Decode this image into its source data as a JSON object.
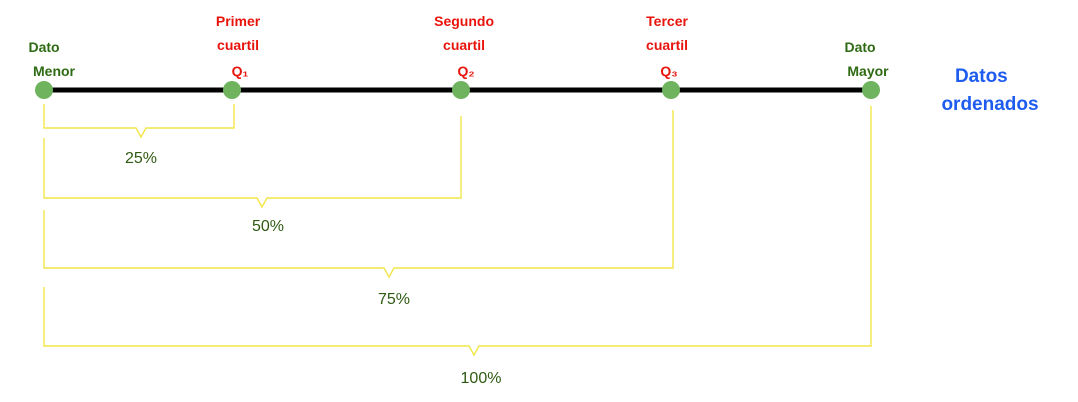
{
  "points": [
    {
      "id": "min",
      "lines": [
        "Dato",
        "Menor"
      ],
      "color": "#2e6b12"
    },
    {
      "id": "q1",
      "lines": [
        "Primer",
        "cuartil",
        "Q₁"
      ],
      "color": "#e8140c"
    },
    {
      "id": "q2",
      "lines": [
        "Segundo",
        "cuartil",
        "Q₂"
      ],
      "color": "#e8140c"
    },
    {
      "id": "q3",
      "lines": [
        "Tercer",
        "cuartil",
        "Q₃"
      ],
      "color": "#e8140c"
    },
    {
      "id": "max",
      "lines": [
        "Dato",
        "Mayor"
      ],
      "color": "#2e6b12"
    }
  ],
  "side_label": [
    "Datos",
    "ordenados"
  ],
  "brackets": [
    {
      "id": "p25",
      "label": "25%"
    },
    {
      "id": "p50",
      "label": "50%"
    },
    {
      "id": "p75",
      "label": "75%"
    },
    {
      "id": "p100",
      "label": "100%"
    }
  ],
  "colors": {
    "axis": "#000000",
    "dot": "#6fb35f",
    "bracket": "#f2e64a",
    "percent_text": "#2e5a12",
    "side_label": "#1e5cf0"
  }
}
